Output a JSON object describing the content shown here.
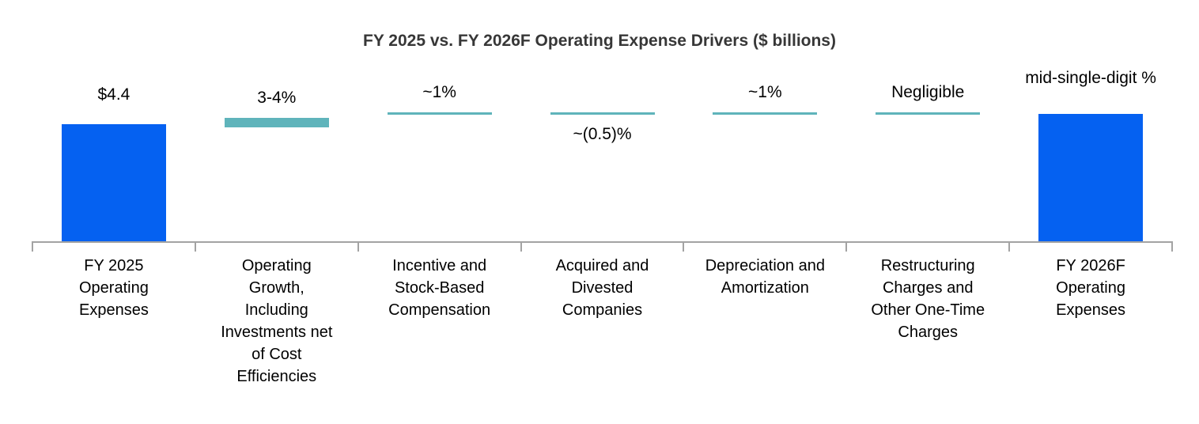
{
  "chart_data": {
    "type": "bar",
    "subtype": "waterfall",
    "title": "FY 2025 vs. FY 2026F Operating Expense Drivers ($ billions)",
    "unit": "$ billions",
    "grid": false,
    "legend": "none",
    "colors": {
      "total_bar": "#0561f1",
      "driver": "#5fb4bb",
      "axis": "#a3a3a3",
      "title_text": "#373737",
      "label_text": "#000000"
    },
    "columns": [
      {
        "label": "FY 2025 Operating Expenses",
        "label_lines": [
          "FY 2025",
          "Operating",
          "Expenses"
        ],
        "value_label": "$4.4",
        "value": 4.4,
        "kind": "total-bar",
        "direction": "start",
        "value_label_position": "above"
      },
      {
        "label": "Operating Growth, Including Investments net of Cost Efficiencies",
        "label_lines": [
          "Operating",
          "Growth,",
          "Including",
          "Investments net",
          "of Cost",
          "Efficiencies"
        ],
        "value_label": "3-4%",
        "kind": "driver-bar",
        "direction": "increase",
        "value_label_position": "above"
      },
      {
        "label": "Incentive and Stock-Based Compensation",
        "label_lines": [
          "Incentive and",
          "Stock-Based",
          "Compensation"
        ],
        "value_label": "~1%",
        "kind": "driver-line",
        "direction": "increase",
        "value_label_position": "above"
      },
      {
        "label": "Acquired and Divested Companies",
        "label_lines": [
          "Acquired and",
          "Divested",
          "Companies"
        ],
        "value_label": "~(0.5)%",
        "kind": "driver-line",
        "direction": "decrease",
        "value_label_position": "below"
      },
      {
        "label": "Depreciation and Amortization",
        "label_lines": [
          "Depreciation and",
          "Amortization"
        ],
        "value_label": "~1%",
        "kind": "driver-line",
        "direction": "increase",
        "value_label_position": "above"
      },
      {
        "label": "Restructuring Charges and Other One-Time Charges",
        "label_lines": [
          "Restructuring",
          "Charges and",
          "Other One-Time",
          "Charges"
        ],
        "value_label": "Negligible",
        "kind": "driver-line",
        "direction": "neutral",
        "value_label_position": "above"
      },
      {
        "label": "FY 2026F Operating Expenses",
        "label_lines": [
          "FY 2026F",
          "Operating",
          "Expenses"
        ],
        "value_label": "mid-single-digit %",
        "kind": "total-bar",
        "direction": "end",
        "value_label_position": "above"
      }
    ]
  }
}
